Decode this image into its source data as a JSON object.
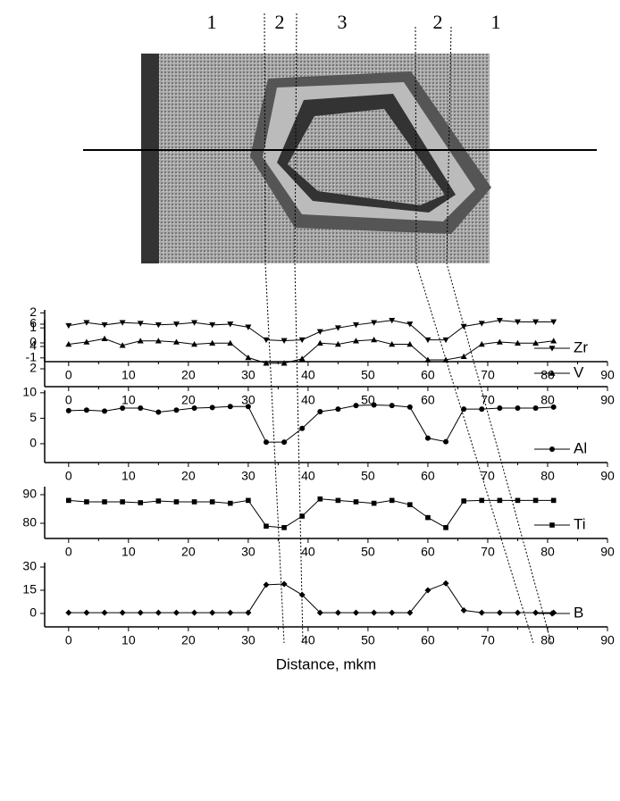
{
  "image": {
    "zone_labels": [
      "1",
      "2",
      "3",
      "2",
      "1"
    ]
  },
  "chart_data": [
    {
      "type": "line",
      "x": [
        0,
        3,
        6,
        9,
        12,
        15,
        18,
        21,
        24,
        27,
        30,
        33,
        36,
        39,
        42,
        45,
        48,
        51,
        54,
        57,
        60,
        63,
        66,
        69,
        72,
        75,
        78,
        81
      ],
      "series": [
        {
          "name": "Zr",
          "color": "#000000",
          "marker": "triangle-down",
          "values": [
            1.15,
            1.35,
            1.2,
            1.35,
            1.3,
            1.2,
            1.25,
            1.35,
            1.2,
            1.25,
            1.05,
            0.2,
            0.15,
            0.2,
            0.75,
            1.0,
            1.2,
            1.35,
            1.5,
            1.25,
            0.2,
            0.2,
            1.1,
            1.3,
            1.5,
            1.4,
            1.4,
            1.4
          ]
        }
      ],
      "xlim": [
        -4,
        90
      ],
      "xticks": [
        0,
        10,
        20,
        30,
        40,
        50,
        60,
        70,
        80,
        90
      ],
      "ylim": [
        -1.25,
        2.2
      ],
      "yticks": [
        -1,
        0,
        1,
        2
      ]
    },
    {
      "type": "line",
      "x": [
        0,
        3,
        6,
        9,
        12,
        15,
        18,
        21,
        24,
        27,
        30,
        33,
        36,
        39,
        42,
        45,
        48,
        51,
        54,
        57,
        60,
        63,
        66,
        69,
        72,
        75,
        78,
        81
      ],
      "series": [
        {
          "name": "V",
          "color": "#000000",
          "marker": "triangle-up",
          "values": [
            4.2,
            4.4,
            4.7,
            4.1,
            4.5,
            4.5,
            4.4,
            4.2,
            4.3,
            4.3,
            3.0,
            2.5,
            2.5,
            2.9,
            4.3,
            4.2,
            4.5,
            4.6,
            4.2,
            4.2,
            2.8,
            2.8,
            3.1,
            4.2,
            4.4,
            4.3,
            4.3,
            4.5
          ]
        }
      ],
      "xlim": [
        -4,
        90
      ],
      "xticks": [
        0,
        10,
        20,
        30,
        40,
        50,
        60,
        70,
        80,
        90
      ],
      "ylim": [
        0.4,
        6.4
      ],
      "yticks": [
        2,
        4,
        6
      ]
    },
    {
      "type": "line",
      "x": [
        0,
        3,
        6,
        9,
        12,
        15,
        18,
        21,
        24,
        27,
        30,
        33,
        36,
        39,
        42,
        45,
        48,
        51,
        54,
        57,
        60,
        63,
        66,
        69,
        72,
        75,
        78,
        81
      ],
      "series": [
        {
          "name": "Al",
          "color": "#000000",
          "marker": "circle",
          "values": [
            6.5,
            6.6,
            6.4,
            7,
            7,
            6.2,
            6.6,
            7,
            7.1,
            7.3,
            7.3,
            0.3,
            0.3,
            3,
            6.3,
            6.8,
            7.5,
            7.6,
            7.5,
            7.2,
            1.1,
            0.4,
            6.8,
            6.8,
            7,
            7,
            7,
            7.2
          ]
        }
      ],
      "xlim": [
        -4,
        90
      ],
      "xticks": [
        0,
        10,
        20,
        30,
        40,
        50,
        60,
        70,
        80,
        90
      ],
      "ylim": [
        -3.7,
        10.5
      ],
      "yticks": [
        0,
        5,
        10
      ]
    },
    {
      "type": "line",
      "x": [
        0,
        3,
        6,
        9,
        12,
        15,
        18,
        21,
        24,
        27,
        30,
        33,
        36,
        39,
        42,
        45,
        48,
        51,
        54,
        57,
        60,
        63,
        66,
        69,
        72,
        75,
        78,
        81
      ],
      "series": [
        {
          "name": "Ti",
          "color": "#000000",
          "marker": "square",
          "values": [
            88,
            87.5,
            87.5,
            87.5,
            87.2,
            87.8,
            87.5,
            87.5,
            87.5,
            87,
            88,
            79,
            78.5,
            82.5,
            88.5,
            88,
            87.5,
            87,
            88,
            86.5,
            82,
            78.5,
            87.8,
            88,
            88,
            88,
            88,
            88
          ]
        }
      ],
      "xlim": [
        -4,
        90
      ],
      "xticks": [
        0,
        10,
        20,
        30,
        40,
        50,
        60,
        70,
        80,
        90
      ],
      "ylim": [
        74.7,
        92.8
      ],
      "yticks": [
        80,
        90
      ]
    },
    {
      "type": "line",
      "x": [
        0,
        3,
        6,
        9,
        12,
        15,
        18,
        21,
        24,
        27,
        30,
        33,
        36,
        39,
        42,
        45,
        48,
        51,
        54,
        57,
        60,
        63,
        66,
        69,
        72,
        75,
        78,
        81
      ],
      "series": [
        {
          "name": "B",
          "color": "#000000",
          "marker": "diamond",
          "values": [
            0.5,
            0.5,
            0.5,
            0.5,
            0.5,
            0.5,
            0.5,
            0.5,
            0.5,
            0.5,
            0.5,
            18.5,
            19,
            12,
            0.5,
            0.5,
            0.5,
            0.5,
            0.5,
            0.5,
            15,
            19.5,
            2,
            0.5,
            0.5,
            0.5,
            0.5,
            0.5
          ]
        }
      ],
      "xlim": [
        -4,
        90
      ],
      "xticks": [
        0,
        10,
        20,
        30,
        40,
        50,
        60,
        70,
        80,
        90
      ],
      "ylim": [
        -8.7,
        32.9
      ],
      "yticks": [
        0,
        15,
        30
      ],
      "x_label": "Distance, mkm"
    }
  ]
}
